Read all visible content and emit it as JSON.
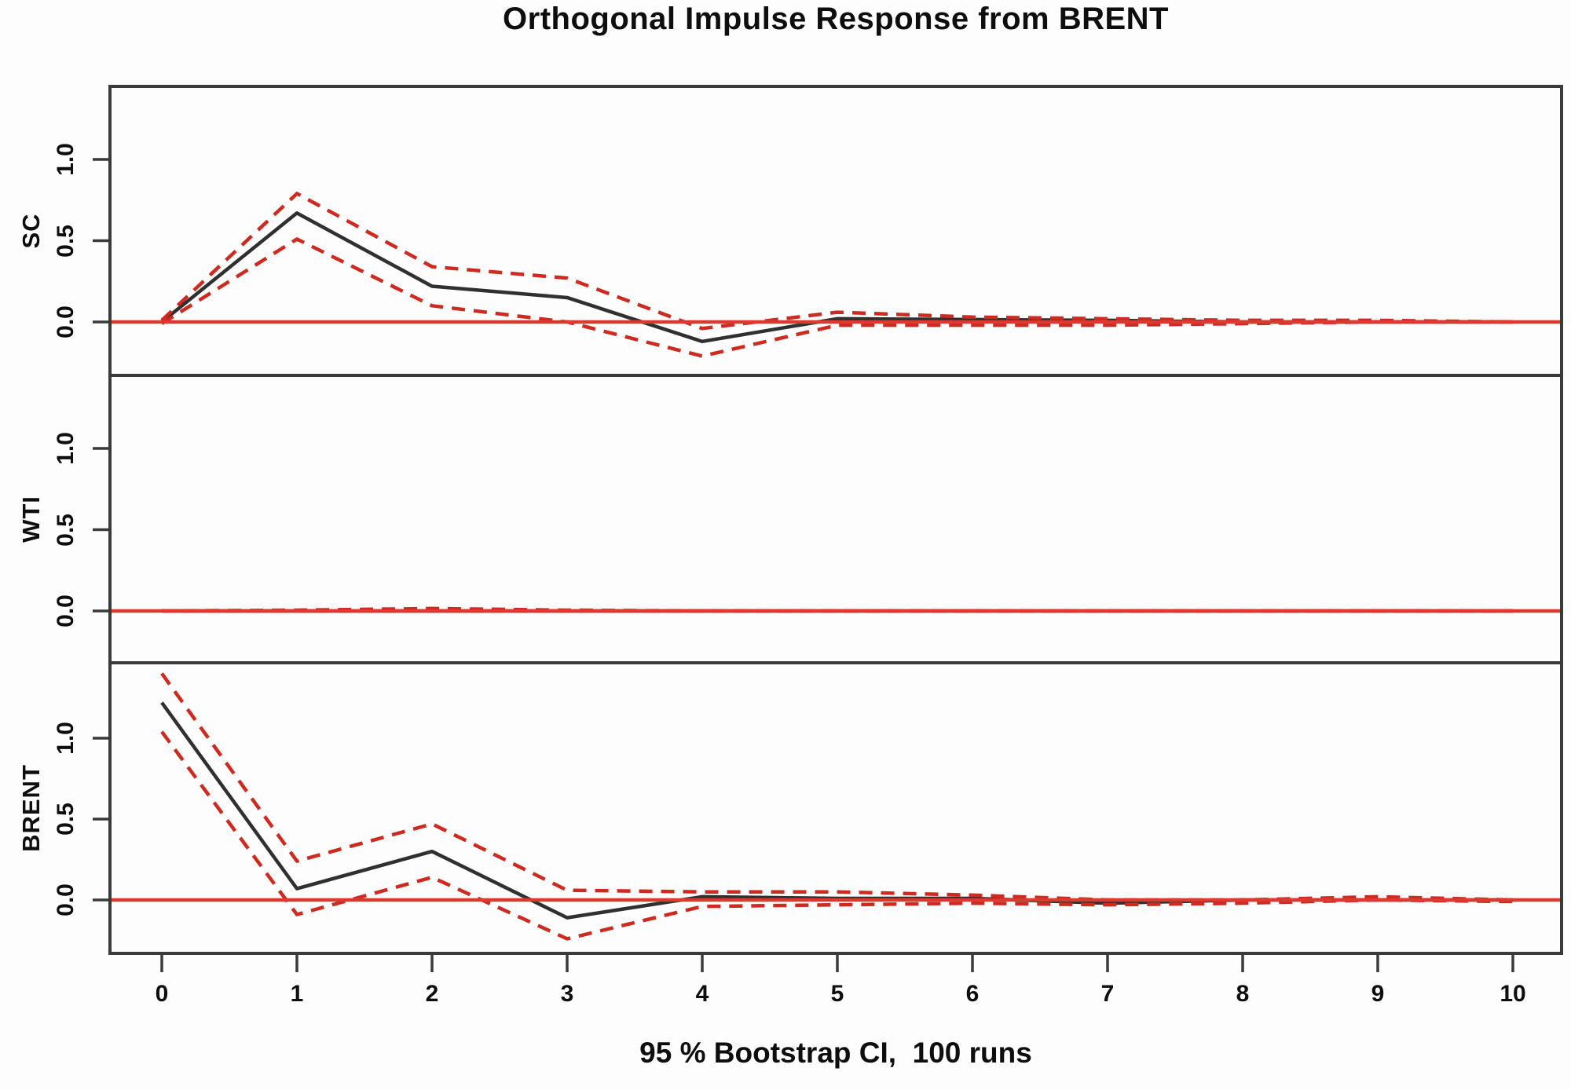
{
  "title": "Orthogonal Impulse Response from BRENT",
  "caption": "95 % Bootstrap CI,  100 runs",
  "colors": {
    "response_line": "#303030",
    "ci_line": "#cf2a20",
    "zero_line": "#da3a31",
    "panel_border": "#3a3a3a",
    "tick_mark": "#3a3a3a",
    "text": "#0e0e0e",
    "background": "#fdfdfd"
  },
  "chart_data": {
    "type": "line",
    "title": "Orthogonal Impulse Response from BRENT",
    "xlabel": "95 % Bootstrap CI,  100 runs",
    "ylabel_panels": [
      "SC",
      "WTI",
      "BRENT"
    ],
    "x": [
      0,
      1,
      2,
      3,
      4,
      5,
      6,
      7,
      8,
      9,
      10
    ],
    "x_tick_labels": [
      "0",
      "1",
      "2",
      "3",
      "4",
      "5",
      "6",
      "7",
      "8",
      "9",
      "10"
    ],
    "y_tick_values": [
      0.0,
      0.5,
      1.0
    ],
    "y_tick_labels": [
      "0.0",
      "0.5",
      "1.0"
    ],
    "ylim": [
      -0.33,
      1.45
    ],
    "grid": false,
    "legend_position": "none",
    "ci_level": "95 %",
    "bootstrap_runs": 100,
    "impulse_variable": "BRENT",
    "panels": [
      {
        "name": "SC",
        "series": [
          {
            "name": "response",
            "style": "solid_black",
            "values": [
              0.0,
              0.67,
              0.22,
              0.15,
              -0.12,
              0.02,
              0.015,
              0.01,
              0.0,
              0.0,
              0.0
            ]
          },
          {
            "name": "ci_upper",
            "style": "dashed_red",
            "values": [
              0.01,
              0.79,
              0.34,
              0.27,
              -0.04,
              0.06,
              0.03,
              0.02,
              0.01,
              0.01,
              0.0
            ]
          },
          {
            "name": "ci_lower",
            "style": "dashed_red",
            "values": [
              -0.01,
              0.51,
              0.1,
              0.0,
              -0.21,
              -0.02,
              -0.02,
              -0.02,
              -0.01,
              0.0,
              0.0
            ]
          }
        ]
      },
      {
        "name": "WTI",
        "series": [
          {
            "name": "response",
            "style": "solid_black",
            "values": [
              0,
              0,
              0,
              0,
              0,
              0,
              0,
              0,
              0,
              0,
              0
            ]
          },
          {
            "name": "ci_upper",
            "style": "dashed_red",
            "values": [
              0.0,
              0.005,
              0.015,
              0.005,
              0.0,
              0,
              0,
              0,
              0,
              0,
              0
            ]
          },
          {
            "name": "ci_lower",
            "style": "dashed_red",
            "values": [
              0,
              0,
              0,
              0,
              0,
              0,
              0,
              0,
              0,
              0,
              0
            ]
          }
        ]
      },
      {
        "name": "BRENT",
        "series": [
          {
            "name": "response",
            "style": "solid_black",
            "values": [
              1.22,
              0.07,
              0.3,
              -0.11,
              0.02,
              0.01,
              0.01,
              -0.02,
              0.0,
              0.0,
              0.0
            ]
          },
          {
            "name": "ci_upper",
            "style": "dashed_red",
            "values": [
              1.4,
              0.24,
              0.47,
              0.06,
              0.05,
              0.05,
              0.03,
              0.0,
              0.0,
              0.02,
              0.0
            ]
          },
          {
            "name": "ci_lower",
            "style": "dashed_red",
            "values": [
              1.04,
              -0.09,
              0.14,
              -0.24,
              -0.04,
              -0.03,
              -0.02,
              -0.03,
              -0.02,
              0.0,
              -0.01
            ]
          }
        ]
      }
    ]
  }
}
